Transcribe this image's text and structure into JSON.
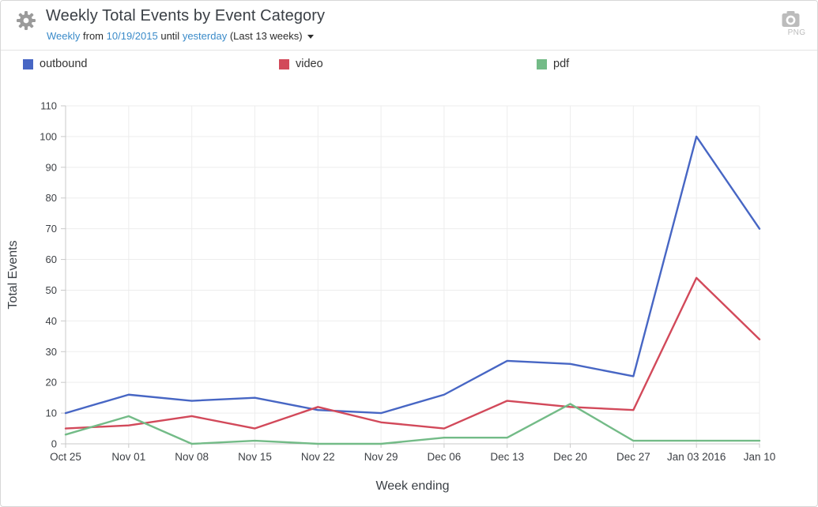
{
  "header": {
    "title": "Weekly Total Events by Event Category",
    "subtitle": {
      "interval": "Weekly",
      "from_word": "from",
      "start_date": "10/19/2015",
      "until_word": "until",
      "end_date": "yesterday",
      "range_note": "(Last 13 weeks)"
    },
    "export": {
      "format_label": "PNG"
    },
    "link_color": "#3b8bc9"
  },
  "legend": {
    "items": [
      {
        "label": "outbound",
        "color": "#4766c4"
      },
      {
        "label": "video",
        "color": "#d2495a"
      },
      {
        "label": "pdf",
        "color": "#73bb87"
      }
    ]
  },
  "icons": {
    "settings": "gear-icon",
    "export": "camera-icon",
    "dropdown": "caret-down-icon"
  },
  "chart_data": {
    "type": "line",
    "title": "Weekly Total Events by Event Category",
    "xlabel": "Week ending",
    "ylabel": "Total Events",
    "categories": [
      "Oct 25",
      "Nov 01",
      "Nov 08",
      "Nov 15",
      "Nov 22",
      "Nov 29",
      "Dec 06",
      "Dec 13",
      "Dec 20",
      "Dec 27",
      "Jan 03 2016",
      "Jan 10"
    ],
    "series": [
      {
        "name": "outbound",
        "color": "#4766c4",
        "values": [
          10,
          16,
          14,
          15,
          11,
          10,
          16,
          27,
          26,
          22,
          100,
          70
        ]
      },
      {
        "name": "video",
        "color": "#d2495a",
        "values": [
          5,
          6,
          9,
          5,
          12,
          7,
          5,
          14,
          12,
          11,
          54,
          34
        ]
      },
      {
        "name": "pdf",
        "color": "#73bb87",
        "values": [
          3,
          9,
          0,
          1,
          0,
          0,
          2,
          2,
          13,
          1,
          1,
          1
        ]
      }
    ],
    "ylim": [
      0,
      110
    ],
    "yticks": [
      0,
      10,
      20,
      30,
      40,
      50,
      60,
      70,
      80,
      90,
      100,
      110
    ],
    "grid": true,
    "legend_position": "top",
    "colors": {
      "grid": "#ededed",
      "axis": "#c9c9c9",
      "tick_text": "#3d4045",
      "axis_title_text": "#3a3f45"
    }
  }
}
